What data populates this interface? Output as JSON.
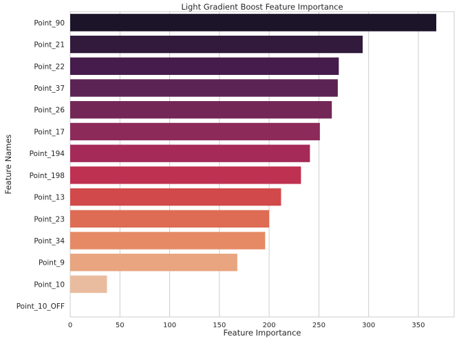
{
  "chart_data": {
    "type": "bar",
    "orientation": "horizontal",
    "title": "Light Gradient Boost Feature Importance",
    "xlabel": "Feature Importance",
    "ylabel": "Feature Names",
    "xlim": [
      0,
      386
    ],
    "xticks": [
      0,
      50,
      100,
      150,
      200,
      250,
      300,
      350
    ],
    "grid": "vertical",
    "legend": "none",
    "categories": [
      "Point_90",
      "Point_21",
      "Point_22",
      "Point_37",
      "Point_26",
      "Point_17",
      "Point_194",
      "Point_198",
      "Point_13",
      "Point_23",
      "Point_34",
      "Point_9",
      "Point_10",
      "Point_10_OFF"
    ],
    "values": [
      368,
      294,
      270,
      269,
      263,
      251,
      241,
      232,
      212,
      200,
      196,
      168,
      37,
      0
    ],
    "colors": [
      "#1c1429",
      "#311a3c",
      "#451c4b",
      "#5b2353",
      "#732757",
      "#8c2a5a",
      "#a52a58",
      "#bf3151",
      "#d1494b",
      "#de6b54",
      "#e58a65",
      "#e8a57f",
      "#eabc9f",
      "#ecd1bb"
    ]
  }
}
